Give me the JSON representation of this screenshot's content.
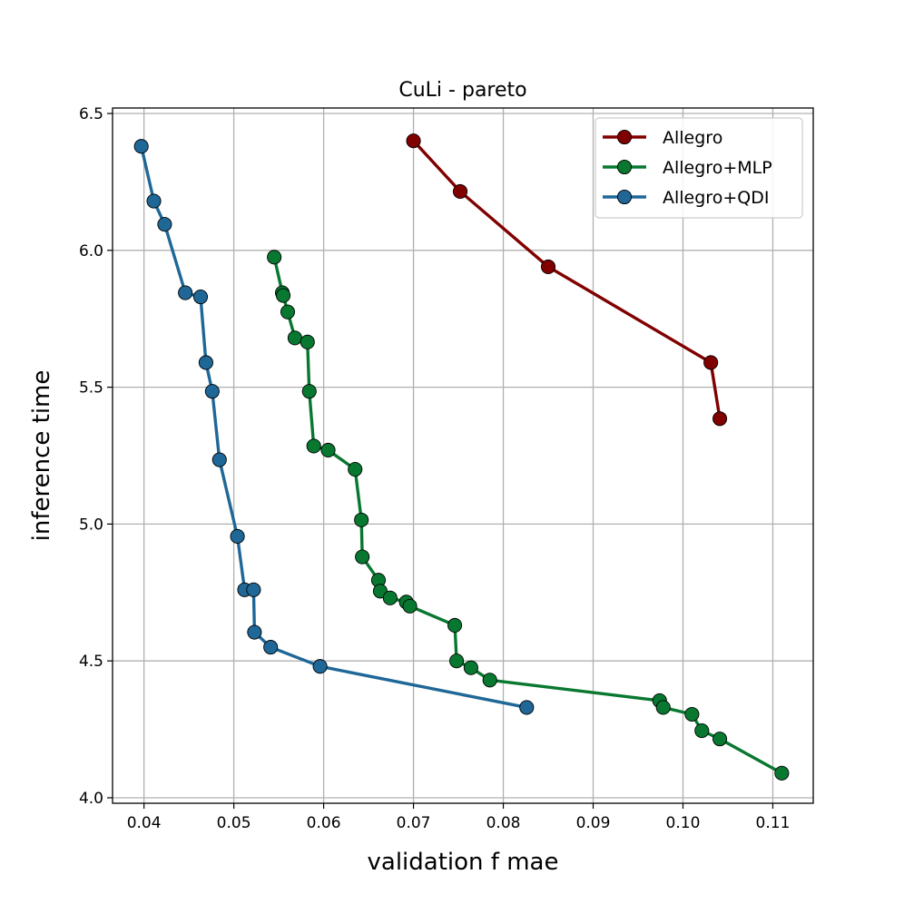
{
  "chart_data": {
    "type": "line",
    "title": "CuLi - pareto",
    "xlabel": "validation f mae",
    "ylabel": "inference time",
    "xlim": [
      0.0365,
      0.1145
    ],
    "ylim": [
      3.98,
      6.52
    ],
    "x_ticks": [
      "0.04",
      "0.05",
      "0.06",
      "0.07",
      "0.08",
      "0.09",
      "0.10",
      "0.11"
    ],
    "x_tick_values": [
      0.04,
      0.05,
      0.06,
      0.07,
      0.08,
      0.09,
      0.1,
      0.11
    ],
    "y_ticks": [
      "4.0",
      "4.5",
      "5.0",
      "5.5",
      "6.0",
      "6.5"
    ],
    "y_tick_values": [
      4.0,
      4.5,
      5.0,
      5.5,
      6.0,
      6.5
    ],
    "grid": true,
    "legend_position": "top-right",
    "series": [
      {
        "name": "Allegro",
        "color": "#800000",
        "x": [
          0.07,
          0.0752,
          0.085,
          0.1031,
          0.1041
        ],
        "y": [
          6.4,
          6.215,
          5.94,
          5.59,
          5.385
        ]
      },
      {
        "name": "Allegro+MLP",
        "color": "#087830",
        "x": [
          0.0545,
          0.0554,
          0.0555,
          0.056,
          0.0568,
          0.0582,
          0.0584,
          0.0589,
          0.0605,
          0.0635,
          0.0642,
          0.0643,
          0.0661,
          0.0663,
          0.0674,
          0.0692,
          0.0696,
          0.0746,
          0.0748,
          0.0764,
          0.0785,
          0.0974,
          0.0978,
          0.101,
          0.1021,
          0.1041,
          0.111
        ],
        "y": [
          5.975,
          5.845,
          5.835,
          5.775,
          5.68,
          5.665,
          5.485,
          5.285,
          5.27,
          5.2,
          5.015,
          4.88,
          4.795,
          4.755,
          4.73,
          4.715,
          4.7,
          4.63,
          4.5,
          4.475,
          4.43,
          4.355,
          4.33,
          4.305,
          4.245,
          4.215,
          4.09
        ]
      },
      {
        "name": "Allegro+QDI",
        "color": "#1f6797",
        "x": [
          0.0397,
          0.0411,
          0.0423,
          0.0446,
          0.0463,
          0.0469,
          0.0476,
          0.0484,
          0.0504,
          0.0512,
          0.0522,
          0.0523,
          0.0541,
          0.0596,
          0.0826
        ],
        "y": [
          6.38,
          6.18,
          6.095,
          5.845,
          5.83,
          5.59,
          5.485,
          5.235,
          4.955,
          4.76,
          4.76,
          4.605,
          4.55,
          4.48,
          4.33
        ]
      }
    ]
  }
}
